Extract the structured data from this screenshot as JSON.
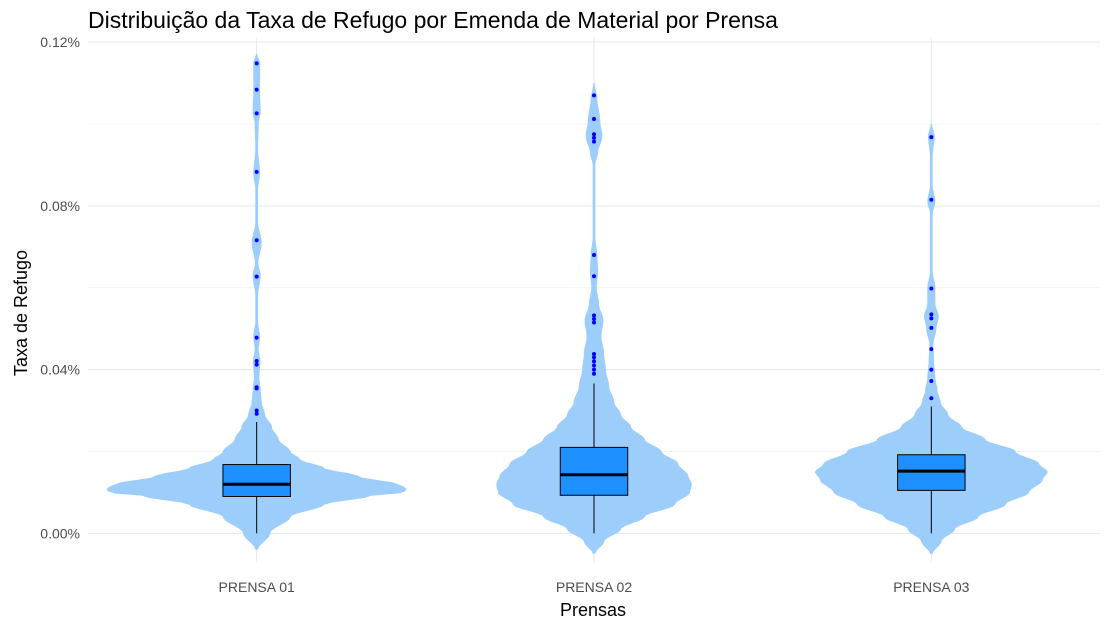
{
  "chart_data": {
    "type": "violin",
    "title": "Distribuição da Taxa de Refugo por Emenda de Material por Prensa",
    "xlabel": "Prensas",
    "ylabel": "Taxa de Refugo",
    "categories": [
      "PRENSA 01",
      "PRENSA 02",
      "PRENSA 03"
    ],
    "ylim": [
      -7e-05,
      0.00121
    ],
    "yticks": [
      0,
      0.0004,
      0.0008,
      0.0012
    ],
    "ytick_labels": [
      "0.00%",
      "0.04%",
      "0.08%",
      "0.12%"
    ],
    "grid": true,
    "legend": "none",
    "colors": {
      "violin": "#9dcdfb",
      "box": "#1e90ff",
      "median": "#000000",
      "outlier": "#0000ff",
      "grid": "#e6e6e6"
    },
    "boxes": [
      {
        "category": "PRENSA 01",
        "q1": 9e-05,
        "median": 0.00012,
        "q3": 0.000168,
        "whisker_low": 0.0,
        "whisker_high": 0.000272
      },
      {
        "category": "PRENSA 02",
        "q1": 9.3e-05,
        "median": 0.000143,
        "q3": 0.00021,
        "whisker_low": 0.0,
        "whisker_high": 0.000366
      },
      {
        "category": "PRENSA 03",
        "q1": 0.000105,
        "median": 0.000152,
        "q3": 0.000192,
        "whisker_low": 0.0,
        "whisker_high": 0.00031
      }
    ],
    "outliers": [
      {
        "category": "PRENSA 01",
        "values": [
          0.001148,
          0.001084,
          0.001026,
          0.000883,
          0.000716,
          0.000627,
          0.000478,
          0.000421,
          0.000412,
          0.000357,
          0.000354,
          0.0003,
          0.000292
        ]
      },
      {
        "category": "PRENSA 02",
        "values": [
          0.00107,
          0.001012,
          0.000975,
          0.000966,
          0.000957,
          0.00068,
          0.000628,
          0.000532,
          0.000524,
          0.000515,
          0.000438,
          0.00043,
          0.00042,
          0.00041,
          0.0004,
          0.00039
        ]
      },
      {
        "category": "PRENSA 03",
        "values": [
          0.000968,
          0.000815,
          0.000598,
          0.000535,
          0.000525,
          0.000502,
          0.00045,
          0.0004,
          0.000372,
          0.00033
        ]
      }
    ],
    "violins": [
      {
        "category": "PRENSA 01",
        "range": [
          -4e-05,
          0.00117
        ],
        "max_half_width": 0.445,
        "profile": [
          [
            -4e-05,
            0.004
          ],
          [
            0.0,
            0.04
          ],
          [
            4e-05,
            0.1
          ],
          [
            7e-05,
            0.2
          ],
          [
            9e-05,
            0.33
          ],
          [
            0.0001,
            0.44
          ],
          [
            0.00011,
            0.445
          ],
          [
            0.00012,
            0.42
          ],
          [
            0.00014,
            0.3
          ],
          [
            0.00016,
            0.2
          ],
          [
            0.00018,
            0.13
          ],
          [
            0.0002,
            0.1
          ],
          [
            0.00023,
            0.065
          ],
          [
            0.00026,
            0.045
          ],
          [
            0.00029,
            0.025
          ],
          [
            0.00032,
            0.015
          ],
          [
            0.00035,
            0.012
          ],
          [
            0.00038,
            0.008
          ],
          [
            0.00042,
            0.011
          ],
          [
            0.00045,
            0.006
          ],
          [
            0.00048,
            0.01
          ],
          [
            0.00052,
            0.004
          ],
          [
            0.00058,
            0.004
          ],
          [
            0.00063,
            0.012
          ],
          [
            0.00066,
            0.005
          ],
          [
            0.00071,
            0.015
          ],
          [
            0.00076,
            0.004
          ],
          [
            0.00084,
            0.004
          ],
          [
            0.00088,
            0.01
          ],
          [
            0.00094,
            0.004
          ],
          [
            0.001,
            0.006
          ],
          [
            0.00103,
            0.012
          ],
          [
            0.00108,
            0.01
          ],
          [
            0.00115,
            0.01
          ],
          [
            0.00117,
            0.002
          ]
        ]
      },
      {
        "category": "PRENSA 02",
        "range": [
          -5e-05,
          0.0011
        ],
        "max_half_width": 0.29,
        "profile": [
          [
            -5e-05,
            0.004
          ],
          [
            -2e-05,
            0.03
          ],
          [
            1e-05,
            0.08
          ],
          [
            4e-05,
            0.15
          ],
          [
            7e-05,
            0.24
          ],
          [
            0.0001,
            0.285
          ],
          [
            0.00012,
            0.29
          ],
          [
            0.00014,
            0.28
          ],
          [
            0.00017,
            0.25
          ],
          [
            0.0002,
            0.2
          ],
          [
            0.00023,
            0.15
          ],
          [
            0.00026,
            0.11
          ],
          [
            0.00029,
            0.08
          ],
          [
            0.00032,
            0.06
          ],
          [
            0.00036,
            0.045
          ],
          [
            0.0004,
            0.035
          ],
          [
            0.00044,
            0.03
          ],
          [
            0.00048,
            0.022
          ],
          [
            0.00052,
            0.028
          ],
          [
            0.00056,
            0.015
          ],
          [
            0.0006,
            0.008
          ],
          [
            0.00064,
            0.012
          ],
          [
            0.00068,
            0.01
          ],
          [
            0.00072,
            0.004
          ],
          [
            0.0008,
            0.004
          ],
          [
            0.0009,
            0.004
          ],
          [
            0.00093,
            0.012
          ],
          [
            0.00097,
            0.025
          ],
          [
            0.00101,
            0.018
          ],
          [
            0.00106,
            0.01
          ],
          [
            0.0011,
            0.002
          ]
        ]
      },
      {
        "category": "PRENSA 03",
        "range": [
          -5e-05,
          0.001
        ],
        "max_half_width": 0.345,
        "profile": [
          [
            -5e-05,
            0.004
          ],
          [
            -2e-05,
            0.03
          ],
          [
            1e-05,
            0.07
          ],
          [
            4e-05,
            0.14
          ],
          [
            7e-05,
            0.22
          ],
          [
            0.0001,
            0.29
          ],
          [
            0.00013,
            0.33
          ],
          [
            0.00015,
            0.345
          ],
          [
            0.00017,
            0.32
          ],
          [
            0.0002,
            0.25
          ],
          [
            0.00023,
            0.16
          ],
          [
            0.00026,
            0.09
          ],
          [
            0.00029,
            0.05
          ],
          [
            0.00032,
            0.028
          ],
          [
            0.00035,
            0.018
          ],
          [
            0.00038,
            0.012
          ],
          [
            0.00042,
            0.008
          ],
          [
            0.00046,
            0.006
          ],
          [
            0.0005,
            0.015
          ],
          [
            0.00053,
            0.022
          ],
          [
            0.00056,
            0.012
          ],
          [
            0.0006,
            0.012
          ],
          [
            0.00064,
            0.004
          ],
          [
            0.0007,
            0.004
          ],
          [
            0.00078,
            0.004
          ],
          [
            0.00081,
            0.012
          ],
          [
            0.00085,
            0.004
          ],
          [
            0.00092,
            0.004
          ],
          [
            0.00097,
            0.01
          ],
          [
            0.001,
            0.002
          ]
        ]
      }
    ]
  }
}
